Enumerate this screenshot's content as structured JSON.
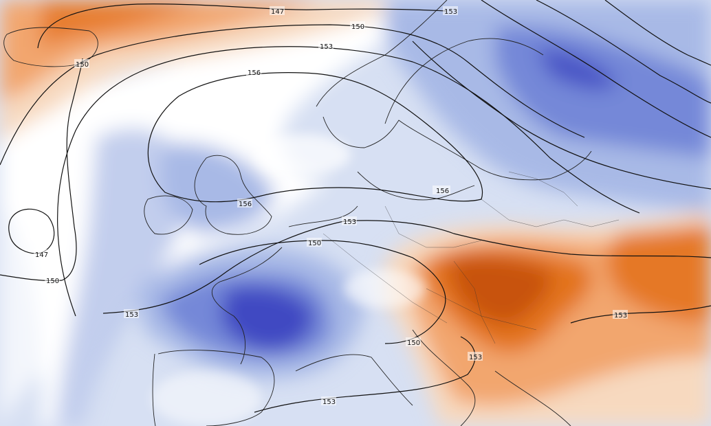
{
  "map": {
    "contour_labels": [
      "147",
      "150",
      "150",
      "153",
      "156",
      "147",
      "150",
      "153",
      "156",
      "156",
      "153",
      "150",
      "153",
      "150",
      "153",
      "153",
      "153"
    ],
    "colors": {
      "warm_light": "#f7d9bf",
      "warm_mid": "#f2a66e",
      "warm_strong": "#e3731f",
      "warm_deep": "#c85210",
      "neutral": "#ffffff",
      "cool_light": "#d7e0f3",
      "cool_mid": "#a8b9e6",
      "cool_strong": "#7488d8",
      "cool_deep": "#3f48c2",
      "cool_core": "#5b3fcf",
      "contour_line": "#111111"
    }
  }
}
